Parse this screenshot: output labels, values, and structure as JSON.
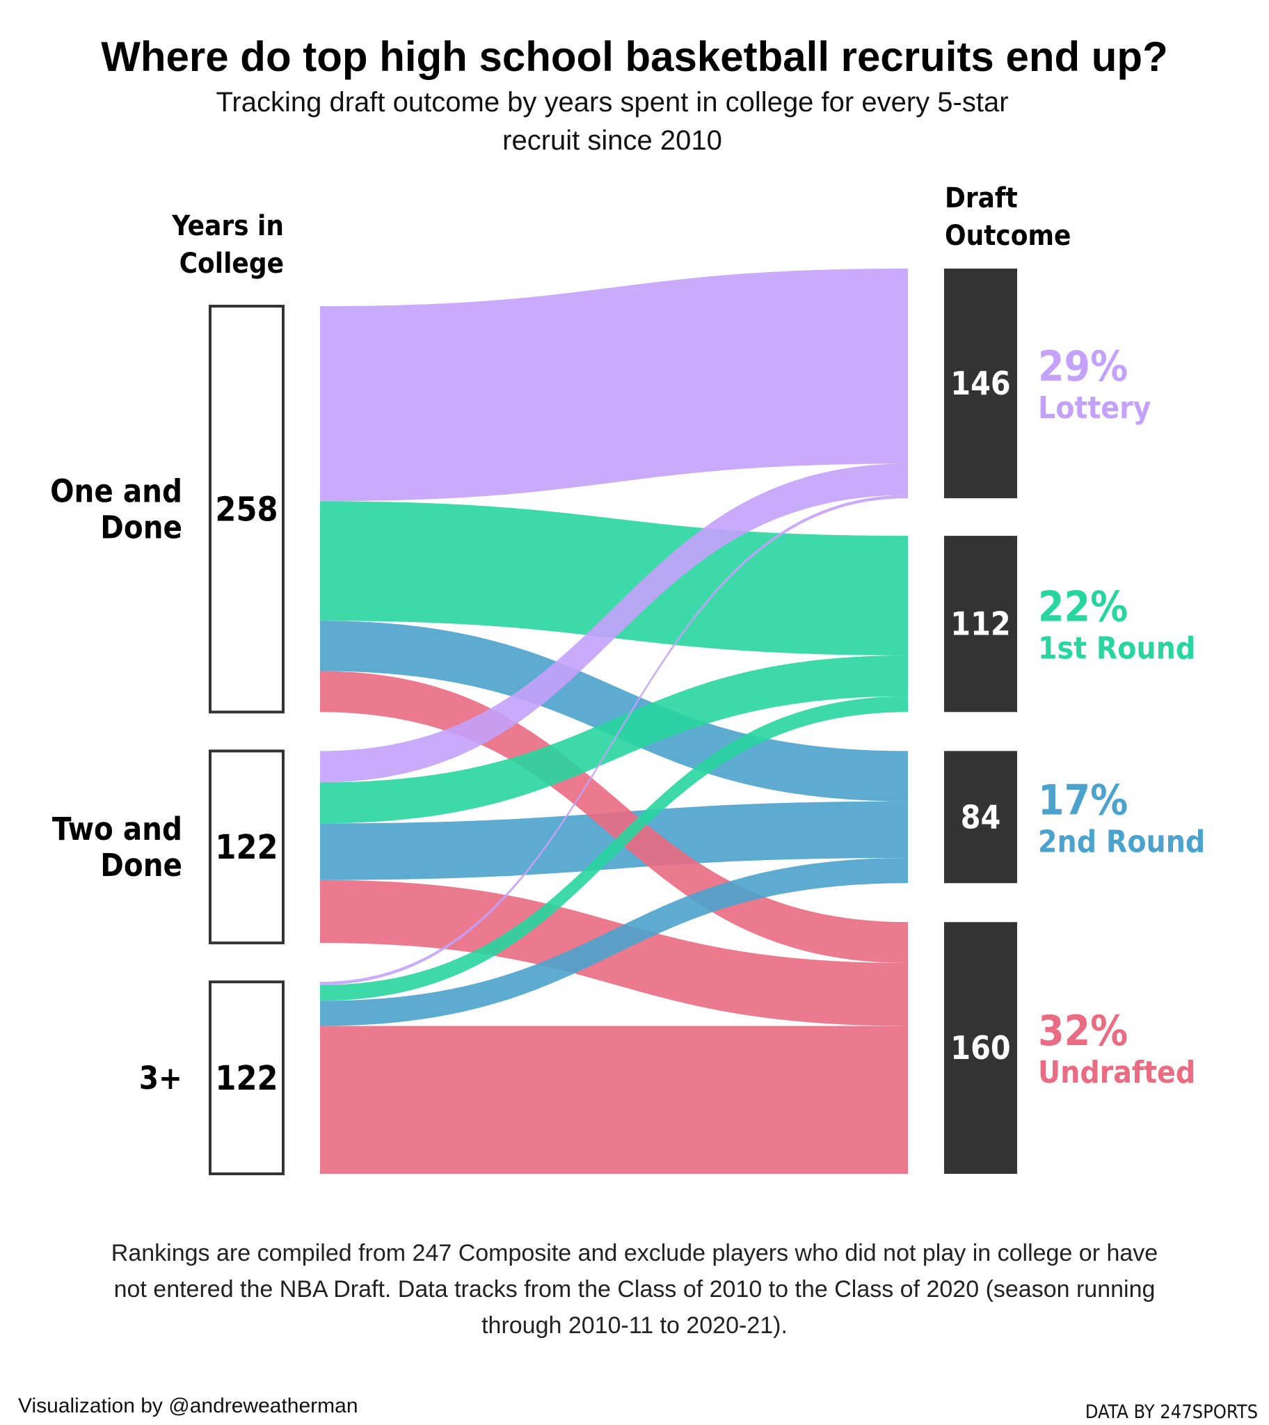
{
  "title": "Where do top high school basketball recruits end up?",
  "subtitle_lines": [
    "Tracking draft outcome by years spent in college for every 5-star",
    "recruit since 2010"
  ],
  "left_header_lines": [
    "Years in",
    "College"
  ],
  "right_header_lines": [
    "Draft",
    "Outcome"
  ],
  "footnote_lines": [
    "Rankings are compiled from 247 Composite and exclude players who did not play in college or have",
    "not entered the NBA Draft. Data tracks from the Class of 2010 to the Class of 2020 (season running",
    "through 2010-11 to 2020-21)."
  ],
  "credit": "Visualization by @andreweatherman",
  "source": "DATA BY 247SPORTS",
  "colors": {
    "lottery": "#c4a1fb",
    "first_round": "#28d59f",
    "second_round": "#4ba2cc",
    "undrafted": "#ea6c82",
    "target_block": "#333333",
    "source_border": "#333333"
  },
  "chart_data": {
    "type": "sankey",
    "sources": [
      {
        "id": "one",
        "label_lines": [
          "One and",
          "Done"
        ],
        "value": 258
      },
      {
        "id": "two",
        "label_lines": [
          "Two and",
          "Done"
        ],
        "value": 122
      },
      {
        "id": "three",
        "label_lines": [
          "3+"
        ],
        "value": 122
      }
    ],
    "targets": [
      {
        "id": "lottery",
        "name": "Lottery",
        "value": 146,
        "percent": "29%",
        "color_key": "lottery"
      },
      {
        "id": "first_round",
        "name": "1st Round",
        "value": 112,
        "percent": "22%",
        "color_key": "first_round"
      },
      {
        "id": "second_round",
        "name": "2nd Round",
        "value": 84,
        "percent": "17%",
        "color_key": "second_round"
      },
      {
        "id": "undrafted",
        "name": "Undrafted",
        "value": 160,
        "percent": "32%",
        "color_key": "undrafted"
      }
    ],
    "flows": [
      {
        "source": "one",
        "target": "lottery",
        "value": 124
      },
      {
        "source": "one",
        "target": "first_round",
        "value": 76
      },
      {
        "source": "one",
        "target": "second_round",
        "value": 32
      },
      {
        "source": "one",
        "target": "undrafted",
        "value": 26
      },
      {
        "source": "two",
        "target": "lottery",
        "value": 20
      },
      {
        "source": "two",
        "target": "first_round",
        "value": 26
      },
      {
        "source": "two",
        "target": "second_round",
        "value": 36
      },
      {
        "source": "two",
        "target": "undrafted",
        "value": 40
      },
      {
        "source": "three",
        "target": "lottery",
        "value": 2
      },
      {
        "source": "three",
        "target": "first_round",
        "value": 10
      },
      {
        "source": "three",
        "target": "second_round",
        "value": 16
      },
      {
        "source": "three",
        "target": "undrafted",
        "value": 94
      }
    ]
  }
}
